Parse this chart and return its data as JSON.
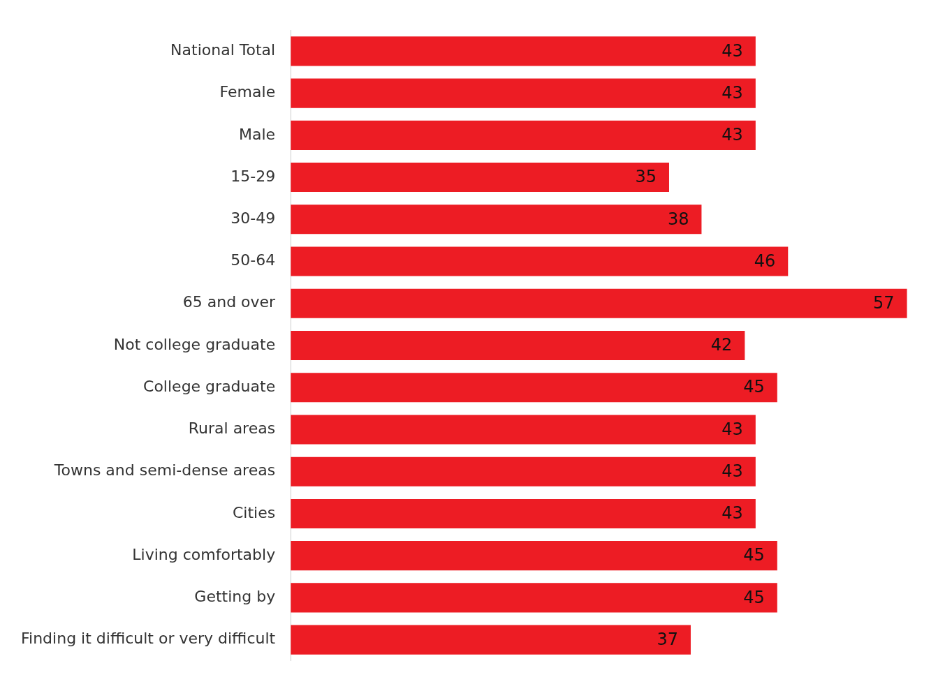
{
  "chart_data": {
    "type": "bar",
    "orientation": "horizontal",
    "categories": [
      "National Total",
      "Female",
      "Male",
      "15-29",
      "30-49",
      "50-64",
      "65 and over",
      "Not college graduate",
      "College graduate",
      "Rural areas",
      "Towns and semi-dense areas",
      "Cities",
      "Living comfortably",
      "Getting by",
      "Finding it difficult or very difficult"
    ],
    "values": [
      43,
      43,
      43,
      35,
      38,
      46,
      57,
      42,
      45,
      43,
      43,
      43,
      45,
      45,
      37
    ],
    "color": "#ed1c24",
    "data_labels": true,
    "grid": false,
    "legend": false
  }
}
